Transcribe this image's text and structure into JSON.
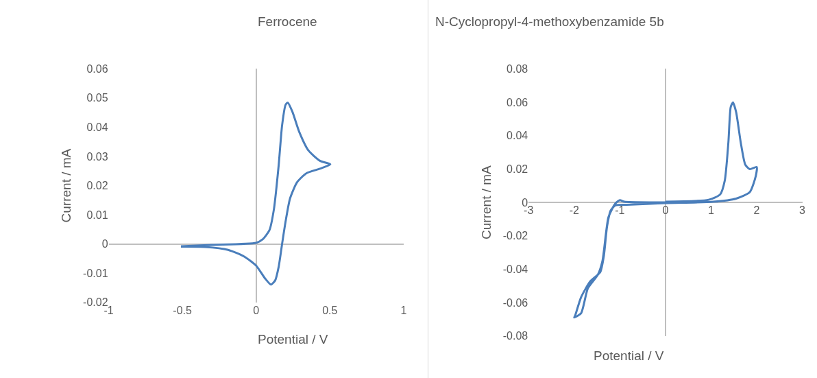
{
  "chart_data": [
    {
      "type": "line",
      "title": "Ferrocene",
      "xlabel": "Potential / V",
      "ylabel": "Current / mA",
      "xlim": [
        -1,
        1
      ],
      "xticks": [
        -1,
        -0.5,
        0,
        0.5,
        1
      ],
      "ylim": [
        -0.02,
        0.06
      ],
      "yticks": [
        -0.02,
        -0.01,
        0,
        0.01,
        0.02,
        0.03,
        0.04,
        0.05,
        0.06
      ],
      "marker": "none",
      "series": [
        {
          "color": "#4a7ebb",
          "x": [
            -0.51,
            -0.3,
            0,
            0.044,
            0.09,
            0.12,
            0.153,
            0.176,
            0.2,
            0.215,
            0.246,
            0.293,
            0.355,
            0.433,
            0.503,
            0.433,
            0.34,
            0.277,
            0.23,
            0.2,
            0.176,
            0.153,
            0.129,
            0.1,
            0.059,
            0,
            -0.081,
            -0.19,
            -0.346,
            -0.51
          ],
          "values": [
            -0.0008,
            -0.0003,
            0.0004,
            0.0016,
            0.0047,
            0.0117,
            0.027,
            0.0406,
            0.0477,
            0.0484,
            0.0453,
            0.0383,
            0.032,
            0.0285,
            0.0273,
            0.0258,
            0.0242,
            0.0211,
            0.0156,
            0.0078,
            0,
            -0.0078,
            -0.0125,
            -0.0139,
            -0.0117,
            -0.0074,
            -0.0043,
            -0.002,
            -0.001,
            -0.0009
          ]
        }
      ]
    },
    {
      "type": "line",
      "title": "N-Cyclopropyl-4-methoxybenzamide 5b",
      "xlabel": "Potential / V",
      "ylabel": "Current / mA",
      "xlim": [
        -3,
        3
      ],
      "xticks": [
        -3,
        -2,
        -1,
        0,
        1,
        2,
        3
      ],
      "ylim": [
        -0.08,
        0.08
      ],
      "yticks": [
        -0.08,
        -0.06,
        -0.04,
        -0.02,
        0,
        0.02,
        0.04,
        0.06,
        0.08
      ],
      "marker": "none",
      "series": [
        {
          "color": "#4a7ebb",
          "x": [
            0,
            0.95,
            1.2,
            1.3,
            1.38,
            1.43,
            1.48,
            1.55,
            1.65,
            1.75,
            1.85,
            2.0,
            1.98,
            1.85,
            1.55,
            1.05,
            0,
            -0.85,
            -1.1,
            -1.2,
            -1.28,
            -1.35,
            -1.43,
            -1.65,
            -1.85,
            -1.98,
            -2.0,
            -1.85,
            -1.7,
            -1.48,
            -1.38,
            -1.25,
            -1.1,
            -1.0,
            -0.9,
            0
          ],
          "values": [
            0.0004,
            0.0016,
            0.0048,
            0.013,
            0.036,
            0.057,
            0.0599,
            0.054,
            0.036,
            0.0226,
            0.0199,
            0.0212,
            0.0158,
            0.0062,
            0.0023,
            0.0004,
            -0.0004,
            -0.0014,
            -0.0018,
            -0.0048,
            -0.0144,
            -0.032,
            -0.0418,
            -0.0473,
            -0.0568,
            -0.0678,
            -0.0689,
            -0.0664,
            -0.0514,
            -0.0432,
            -0.0349,
            -0.0089,
            -0.0007,
            0.0014,
            0.0004,
            0.0001
          ]
        }
      ]
    }
  ]
}
